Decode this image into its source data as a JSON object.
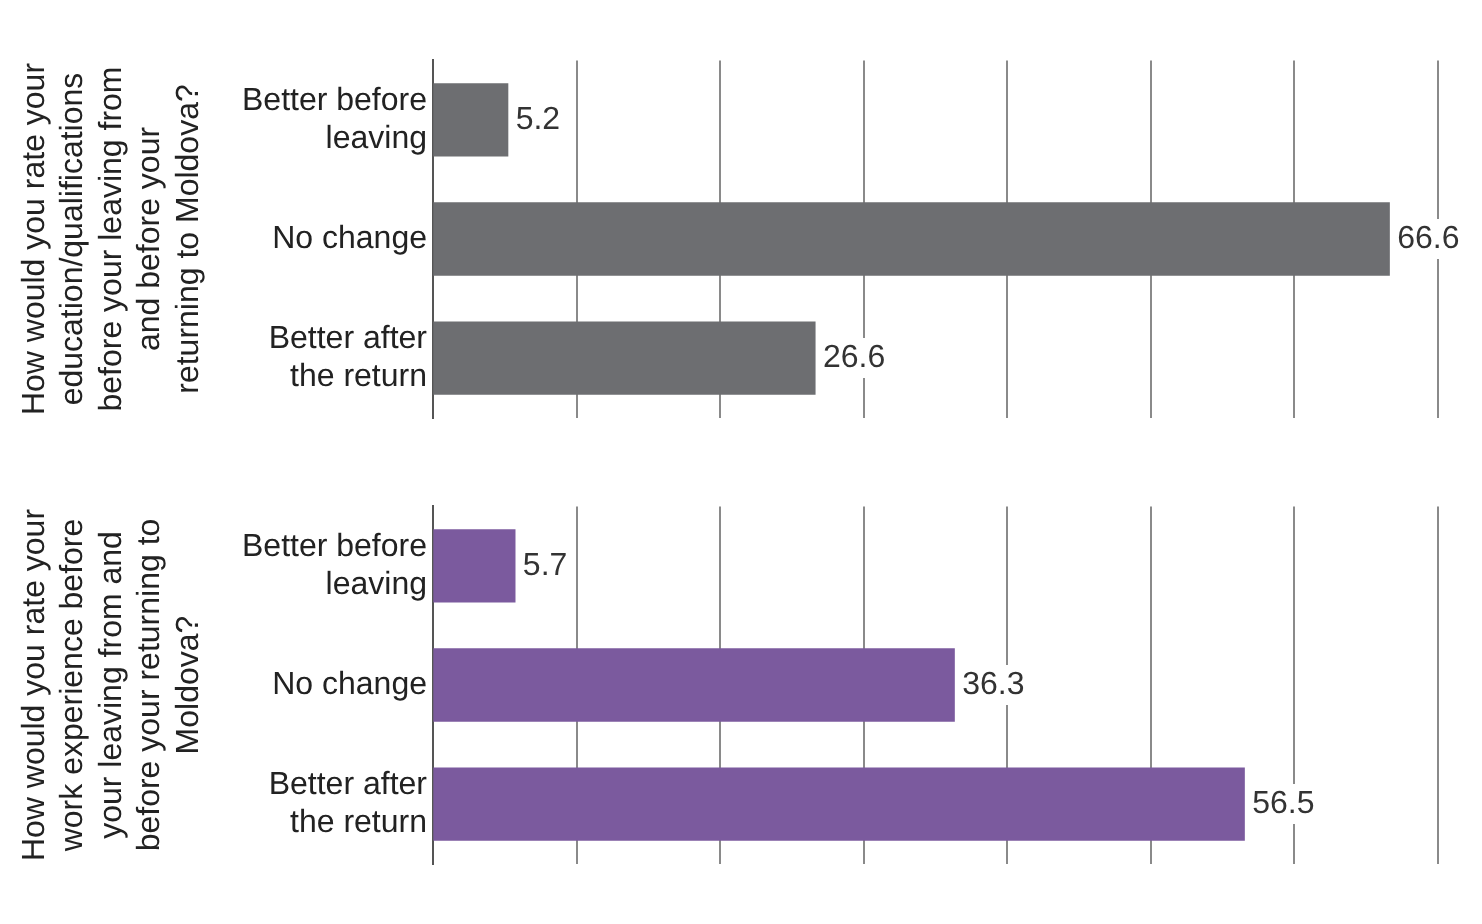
{
  "chart_data": [
    {
      "type": "bar",
      "orientation": "horizontal",
      "ylabel": "How would you rate your education/qualifications before your leaving from and before your returning to Moldova?",
      "categories": [
        "Better before leaving",
        "No change",
        "Better after the return"
      ],
      "values": [
        5.2,
        66.6,
        26.6
      ],
      "color": "#6d6e71",
      "xlim": [
        0,
        70
      ],
      "xticks": [
        {
          "value": 0,
          "label": null
        },
        {
          "value": 10,
          "label": null
        },
        {
          "value": 20,
          "label": null
        },
        {
          "value": 30,
          "label": null
        },
        {
          "value": 40,
          "label": null
        },
        {
          "value": 50,
          "label": null
        },
        {
          "value": 60,
          "label": null
        },
        {
          "value": 70,
          "label": null
        }
      ],
      "grid": "x",
      "tick_labels": "y",
      "data_labels": true
    },
    {
      "type": "bar",
      "orientation": "horizontal",
      "ylabel": "How would you rate your work experience before your leaving from and before your returning to Moldova?",
      "categories": [
        "Better before leaving",
        "No change",
        "Better after the return"
      ],
      "values": [
        5.7,
        36.3,
        56.5
      ],
      "color": "#7b5a9e",
      "xlim": [
        0,
        70
      ],
      "grid": "x",
      "tick_labels": "y",
      "data_labels": true
    }
  ]
}
